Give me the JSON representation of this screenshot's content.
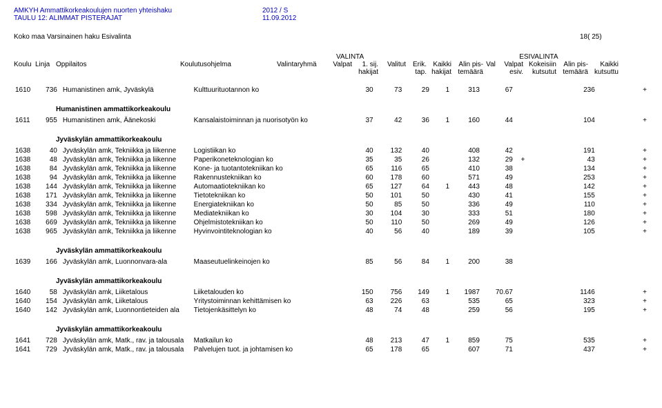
{
  "header": {
    "title1": "AMKYH Ammattikorkeakoulujen nuorten yhteishaku",
    "title2": "TAULU 12: ALIMMAT PISTERAJAT",
    "period": "2012 / S",
    "date": "11.09.2012"
  },
  "koko": {
    "left": "Koko maa   Varsinainen haku   Esivalinta",
    "right": "18( 25)"
  },
  "colTop": {
    "valinta": "VALINTA",
    "esivalinta": "ESIVALINTA"
  },
  "cols": {
    "koulu": "Koulu",
    "linja": "Linja",
    "oppi": "Oppilaitos",
    "ohj": "Koulutusohjelma",
    "ryh": "Valintaryhmä",
    "valpat": "Valpat",
    "sij": "1. sij.",
    "valitut": "Valitut",
    "erik": "Erik.",
    "kaikki": "Kaikki",
    "alin1": "Alin pis-",
    "val": "Val",
    "valpat2": "Valpat",
    "kok": "Kokeisiin",
    "alin2": "Alin pis-",
    "kaikki2": "Kaikki"
  },
  "sub": {
    "hak": "hakijat",
    "tap": "tap.",
    "hak2": "hakijat",
    "tem": "temäärä",
    "esiv": "esiv.",
    "kuts": "kutsutut",
    "tem2": "temäärä",
    "kuts2": "kutsuttu"
  },
  "blocks": [
    {
      "title": "",
      "rows": [
        {
          "koulu": "1610",
          "linja": "736",
          "oppi": "Humanistinen amk, Jyväskylä",
          "ohj": "Kulttuurituotannon ko",
          "valpat": "30",
          "sij": "73",
          "valitut": "29",
          "erik": "1",
          "kaikki": "313",
          "alin1": "67",
          "val": "",
          "valpat2": "",
          "kok": "236",
          "alin2": "",
          "plus": "+"
        }
      ]
    },
    {
      "title": "Humanistinen ammattikorkeakoulu",
      "rows": [
        {
          "koulu": "1611",
          "linja": "955",
          "oppi": "Humanistinen amk, Äänekoski",
          "ohj": "Kansalaistoiminnan ja nuorisotyön ko",
          "valpat": "37",
          "sij": "42",
          "valitut": "36",
          "erik": "1",
          "kaikki": "160",
          "alin1": "44",
          "val": "",
          "valpat2": "",
          "kok": "104",
          "alin2": "",
          "plus": "+"
        }
      ]
    },
    {
      "title": "Jyväskylän ammattikorkeakoulu",
      "rows": [
        {
          "koulu": "1638",
          "linja": "40",
          "oppi": "Jyväskylän amk, Tekniikka ja liikenne",
          "ohj": "Logistiikan ko",
          "valpat": "40",
          "sij": "132",
          "valitut": "40",
          "erik": "",
          "kaikki": "408",
          "alin1": "42",
          "val": "",
          "valpat2": "",
          "kok": "191",
          "alin2": "",
          "plus": "+"
        },
        {
          "koulu": "1638",
          "linja": "48",
          "oppi": "Jyväskylän amk, Tekniikka ja liikenne",
          "ohj": "Paperikoneteknologian ko",
          "valpat": "35",
          "sij": "35",
          "valitut": "26",
          "erik": "",
          "kaikki": "132",
          "alin1": "29",
          "val": "+",
          "valpat2": "",
          "kok": "43",
          "alin2": "",
          "plus": "+"
        },
        {
          "koulu": "1638",
          "linja": "84",
          "oppi": "Jyväskylän amk, Tekniikka ja liikenne",
          "ohj": "Kone- ja tuotantotekniikan ko",
          "valpat": "65",
          "sij": "116",
          "valitut": "65",
          "erik": "",
          "kaikki": "410",
          "alin1": "38",
          "val": "",
          "valpat2": "",
          "kok": "134",
          "alin2": "",
          "plus": "+"
        },
        {
          "koulu": "1638",
          "linja": "94",
          "oppi": "Jyväskylän amk, Tekniikka ja liikenne",
          "ohj": "Rakennustekniikan ko",
          "valpat": "60",
          "sij": "178",
          "valitut": "60",
          "erik": "",
          "kaikki": "571",
          "alin1": "49",
          "val": "",
          "valpat2": "",
          "kok": "253",
          "alin2": "",
          "plus": "+"
        },
        {
          "koulu": "1638",
          "linja": "144",
          "oppi": "Jyväskylän amk, Tekniikka ja liikenne",
          "ohj": "Automaatiotekniikan ko",
          "valpat": "65",
          "sij": "127",
          "valitut": "64",
          "erik": "1",
          "kaikki": "443",
          "alin1": "48",
          "val": "",
          "valpat2": "",
          "kok": "142",
          "alin2": "",
          "plus": "+"
        },
        {
          "koulu": "1638",
          "linja": "171",
          "oppi": "Jyväskylän amk, Tekniikka ja liikenne",
          "ohj": "Tietotekniikan ko",
          "valpat": "50",
          "sij": "101",
          "valitut": "50",
          "erik": "",
          "kaikki": "430",
          "alin1": "41",
          "val": "",
          "valpat2": "",
          "kok": "155",
          "alin2": "",
          "plus": "+"
        },
        {
          "koulu": "1638",
          "linja": "334",
          "oppi": "Jyväskylän amk, Tekniikka ja liikenne",
          "ohj": "Energiatekniikan ko",
          "valpat": "50",
          "sij": "85",
          "valitut": "50",
          "erik": "",
          "kaikki": "336",
          "alin1": "49",
          "val": "",
          "valpat2": "",
          "kok": "110",
          "alin2": "",
          "plus": "+"
        },
        {
          "koulu": "1638",
          "linja": "598",
          "oppi": "Jyväskylän amk, Tekniikka ja liikenne",
          "ohj": "Mediatekniikan ko",
          "valpat": "30",
          "sij": "104",
          "valitut": "30",
          "erik": "",
          "kaikki": "333",
          "alin1": "51",
          "val": "",
          "valpat2": "",
          "kok": "180",
          "alin2": "",
          "plus": "+"
        },
        {
          "koulu": "1638",
          "linja": "669",
          "oppi": "Jyväskylän amk, Tekniikka ja liikenne",
          "ohj": "Ohjelmistotekniikan ko",
          "valpat": "50",
          "sij": "110",
          "valitut": "50",
          "erik": "",
          "kaikki": "269",
          "alin1": "49",
          "val": "",
          "valpat2": "",
          "kok": "126",
          "alin2": "",
          "plus": "+"
        },
        {
          "koulu": "1638",
          "linja": "965",
          "oppi": "Jyväskylän amk, Tekniikka ja liikenne",
          "ohj": "Hyvinvointiteknologian ko",
          "valpat": "40",
          "sij": "56",
          "valitut": "40",
          "erik": "",
          "kaikki": "189",
          "alin1": "39",
          "val": "",
          "valpat2": "",
          "kok": "105",
          "alin2": "",
          "plus": "+"
        }
      ]
    },
    {
      "title": "Jyväskylän ammattikorkeakoulu",
      "rows": [
        {
          "koulu": "1639",
          "linja": "166",
          "oppi": "Jyväskylän amk, Luonnonvara-ala",
          "ohj": "Maaseutuelinkeinojen ko",
          "valpat": "85",
          "sij": "56",
          "valitut": "84",
          "erik": "1",
          "kaikki": "200",
          "alin1": "38",
          "val": "",
          "valpat2": "",
          "kok": "",
          "alin2": "",
          "plus": ""
        }
      ]
    },
    {
      "title": "Jyväskylän ammattikorkeakoulu",
      "rows": [
        {
          "koulu": "1640",
          "linja": "58",
          "oppi": "Jyväskylän amk, Liiketalous",
          "ohj": "Liiketalouden ko",
          "valpat": "150",
          "sij": "756",
          "valitut": "149",
          "erik": "1",
          "kaikki": "1987",
          "alin1": "70.67",
          "val": "",
          "valpat2": "",
          "kok": "1146",
          "alin2": "",
          "plus": "+"
        },
        {
          "koulu": "1640",
          "linja": "154",
          "oppi": "Jyväskylän amk, Liiketalous",
          "ohj": "Yritystoiminnan kehittämisen ko",
          "valpat": "63",
          "sij": "226",
          "valitut": "63",
          "erik": "",
          "kaikki": "535",
          "alin1": "65",
          "val": "",
          "valpat2": "",
          "kok": "323",
          "alin2": "",
          "plus": "+"
        },
        {
          "koulu": "1640",
          "linja": "142",
          "oppi": "Jyväskylän amk, Luonnontieteiden ala",
          "ohj": "Tietojenkäsittelyn ko",
          "valpat": "48",
          "sij": "74",
          "valitut": "48",
          "erik": "",
          "kaikki": "259",
          "alin1": "56",
          "val": "",
          "valpat2": "",
          "kok": "195",
          "alin2": "",
          "plus": "+"
        }
      ]
    },
    {
      "title": "Jyväskylän ammattikorkeakoulu",
      "rows": [
        {
          "koulu": "1641",
          "linja": "728",
          "oppi": "Jyväskylän amk, Matk., rav. ja talousala",
          "ohj": "Matkailun ko",
          "valpat": "48",
          "sij": "213",
          "valitut": "47",
          "erik": "1",
          "kaikki": "859",
          "alin1": "75",
          "val": "",
          "valpat2": "",
          "kok": "535",
          "alin2": "",
          "plus": "+"
        },
        {
          "koulu": "1641",
          "linja": "729",
          "oppi": "Jyväskylän amk, Matk., rav. ja talousala",
          "ohj": "Palvelujen tuot. ja johtamisen ko",
          "valpat": "65",
          "sij": "178",
          "valitut": "65",
          "erik": "",
          "kaikki": "607",
          "alin1": "71",
          "val": "",
          "valpat2": "",
          "kok": "437",
          "alin2": "",
          "plus": "+"
        }
      ]
    }
  ]
}
